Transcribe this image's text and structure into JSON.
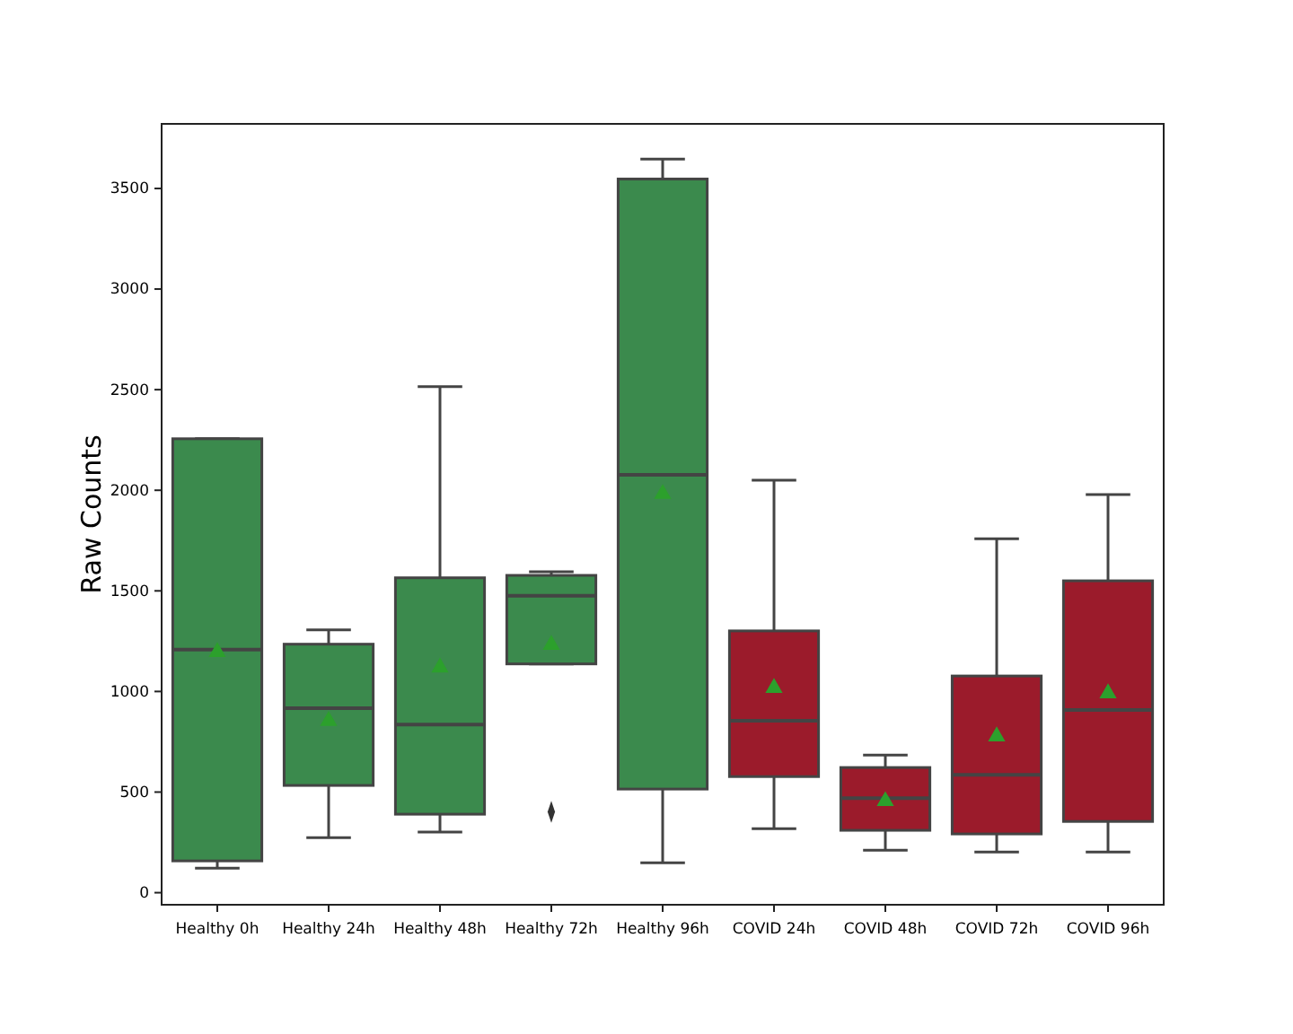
{
  "chart_data": {
    "type": "box",
    "ylabel": "Raw Counts",
    "categories": [
      "Healthy 0h",
      "Healthy 24h",
      "Healthy 48h",
      "Healthy 72h",
      "Healthy 96h",
      "COVID 24h",
      "COVID 48h",
      "COVID 72h",
      "COVID 96h"
    ],
    "colors": [
      "#3b8a4d",
      "#3b8a4d",
      "#3b8a4d",
      "#3b8a4d",
      "#3b8a4d",
      "#9b1b2b",
      "#9b1b2b",
      "#9b1b2b",
      "#9b1b2b"
    ],
    "boxes": [
      {
        "low": 122,
        "q1": 158,
        "median": 1208,
        "q3": 2256,
        "high": 2256,
        "mean": 1196
      },
      {
        "low": 274,
        "q1": 533,
        "median": 917,
        "q3": 1235,
        "high": 1306,
        "mean": 854
      },
      {
        "low": 301,
        "q1": 390,
        "median": 836,
        "q3": 1565,
        "high": 2515,
        "mean": 1119
      },
      {
        "low": 1137,
        "q1": 1137,
        "median": 1476,
        "q3": 1577,
        "high": 1595,
        "mean": 1232,
        "outliers": [
          402
        ]
      },
      {
        "low": 149,
        "q1": 515,
        "median": 2077,
        "q3": 3547,
        "high": 3646,
        "mean": 1982
      },
      {
        "low": 318,
        "q1": 577,
        "median": 854,
        "q3": 1301,
        "high": 2050,
        "mean": 1018
      },
      {
        "low": 211,
        "q1": 310,
        "median": 470,
        "q3": 622,
        "high": 684,
        "mean": 455
      },
      {
        "low": 202,
        "q1": 292,
        "median": 586,
        "q3": 1077,
        "high": 1759,
        "mean": 777
      },
      {
        "low": 202,
        "q1": 354,
        "median": 908,
        "q3": 1550,
        "high": 1979,
        "mean": 991
      }
    ],
    "ylim": [
      -60,
      3821
    ],
    "yticks": [
      0,
      500,
      1000,
      1500,
      2000,
      2500,
      3000,
      3500
    ],
    "marker": "triangle",
    "grid": false
  }
}
